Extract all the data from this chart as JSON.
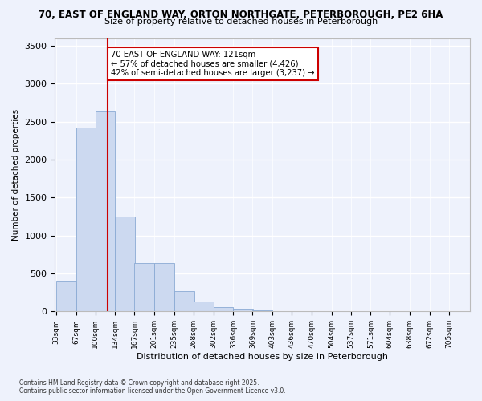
{
  "title_line1": "70, EAST OF ENGLAND WAY, ORTON NORTHGATE, PETERBOROUGH, PE2 6HA",
  "title_line2": "Size of property relative to detached houses in Peterborough",
  "xlabel": "Distribution of detached houses by size in Peterborough",
  "ylabel": "Number of detached properties",
  "bin_labels": [
    "33sqm",
    "67sqm",
    "100sqm",
    "134sqm",
    "167sqm",
    "201sqm",
    "235sqm",
    "268sqm",
    "302sqm",
    "336sqm",
    "369sqm",
    "403sqm",
    "436sqm",
    "470sqm",
    "504sqm",
    "537sqm",
    "571sqm",
    "604sqm",
    "638sqm",
    "672sqm",
    "705sqm"
  ],
  "bin_edges": [
    33,
    67,
    100,
    134,
    167,
    201,
    235,
    268,
    302,
    336,
    369,
    403,
    436,
    470,
    504,
    537,
    571,
    604,
    638,
    672,
    705
  ],
  "bar_heights": [
    400,
    2420,
    2630,
    1250,
    640,
    640,
    270,
    130,
    55,
    40,
    10,
    5,
    3,
    1,
    0,
    0,
    0,
    0,
    0,
    0,
    0
  ],
  "bar_color": "#ccd9f0",
  "bar_edgecolor": "#8aaad4",
  "property_sqm": 121,
  "vline_color": "#cc0000",
  "annotation_text": "70 EAST OF ENGLAND WAY: 121sqm\n← 57% of detached houses are smaller (4,426)\n42% of semi-detached houses are larger (3,237) →",
  "annotation_box_facecolor": "#ffffff",
  "annotation_box_edgecolor": "#cc0000",
  "ylim": [
    0,
    3600
  ],
  "yticks": [
    0,
    500,
    1000,
    1500,
    2000,
    2500,
    3000,
    3500
  ],
  "background_color": "#eef2fc",
  "grid_color": "#ffffff",
  "footer_line1": "Contains HM Land Registry data © Crown copyright and database right 2025.",
  "footer_line2": "Contains public sector information licensed under the Open Government Licence v3.0."
}
